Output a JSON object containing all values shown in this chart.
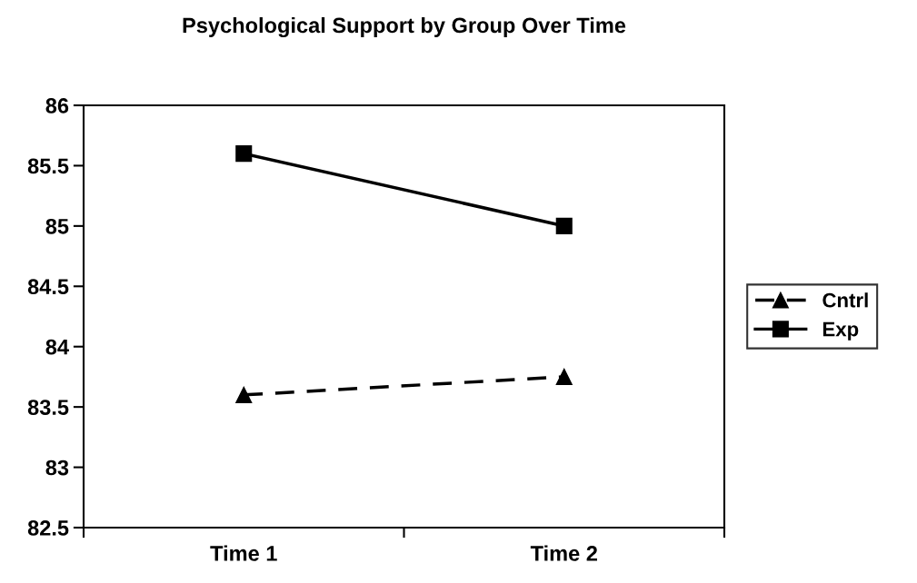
{
  "chart_data": {
    "type": "line",
    "title": "Psychological Support by Group Over Time",
    "categories": [
      "Time 1",
      "Time 2"
    ],
    "series": [
      {
        "name": "Cntrl",
        "color": "#000000",
        "values": [
          83.6,
          83.75
        ],
        "marker": "triangle",
        "line_style": "dashed"
      },
      {
        "name": "Exp",
        "color": "#000000",
        "values": [
          85.6,
          85.0
        ],
        "marker": "square",
        "line_style": "solid"
      }
    ],
    "ylim": [
      82.5,
      86
    ],
    "yticks": [
      82.5,
      83,
      83.5,
      84,
      84.5,
      85,
      85.5,
      86
    ],
    "grid": false,
    "legend": "right"
  }
}
